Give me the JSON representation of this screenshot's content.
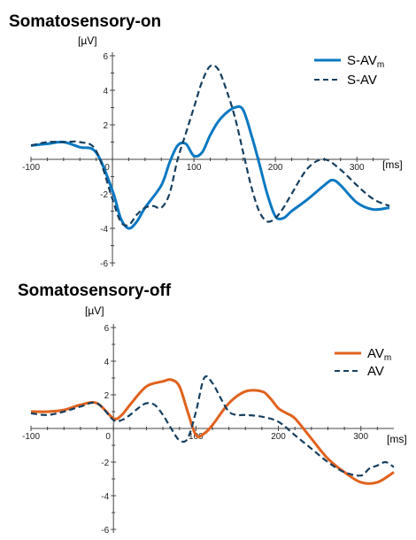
{
  "chart_data": [
    {
      "type": "line",
      "title": "Somatosensory-on",
      "ylabel": "[µV]",
      "xlabel": "[ms]",
      "xlim": [
        -100,
        340
      ],
      "ylim": [
        -6,
        6
      ],
      "xticks": [
        -100,
        0,
        100,
        200,
        300
      ],
      "yticks": [
        6,
        4,
        2,
        -2,
        -4,
        -6
      ],
      "colors": {
        "solid": "#0a78c2",
        "dashed": "#173f5f"
      },
      "legend_position": "top-right",
      "series": [
        {
          "name": "S-AV",
          "name_sub": "m",
          "style": "solid",
          "x": [
            -100,
            -80,
            -60,
            -40,
            -20,
            0,
            10,
            20,
            30,
            40,
            60,
            70,
            80,
            90,
            100,
            110,
            120,
            130,
            140,
            150,
            160,
            170,
            180,
            190,
            200,
            210,
            220,
            240,
            260,
            270,
            280,
            300,
            320,
            340
          ],
          "y": [
            0.8,
            0.9,
            1.0,
            0.7,
            0.4,
            -1.8,
            -3.4,
            -4.0,
            -3.6,
            -2.8,
            -1.5,
            -0.2,
            0.8,
            0.9,
            0.2,
            0.4,
            1.4,
            2.2,
            2.7,
            3.0,
            2.9,
            1.5,
            -0.2,
            -2.0,
            -3.3,
            -3.4,
            -3.0,
            -2.3,
            -1.5,
            -1.2,
            -1.5,
            -2.5,
            -2.9,
            -2.8
          ]
        },
        {
          "name": "S-AV",
          "style": "dashed",
          "x": [
            -100,
            -80,
            -60,
            -40,
            -20,
            0,
            10,
            20,
            30,
            40,
            50,
            60,
            70,
            80,
            90,
            100,
            110,
            120,
            130,
            140,
            150,
            160,
            170,
            180,
            190,
            200,
            210,
            220,
            240,
            260,
            280,
            300,
            320,
            340
          ],
          "y": [
            0.8,
            1.0,
            1.0,
            1.0,
            0.5,
            -2.3,
            -3.6,
            -3.8,
            -3.2,
            -2.8,
            -2.7,
            -2.8,
            -2.0,
            0.0,
            1.5,
            3.0,
            4.5,
            5.4,
            5.2,
            4.0,
            2.5,
            0.5,
            -1.5,
            -3.0,
            -3.6,
            -3.4,
            -2.8,
            -2.0,
            -0.5,
            0.0,
            -0.6,
            -1.5,
            -2.3,
            -2.7
          ]
        }
      ]
    },
    {
      "type": "line",
      "title": "Somatosensory-off",
      "ylabel": "[µV]",
      "xlabel": "[ms]",
      "xlim": [
        -100,
        340
      ],
      "ylim": [
        -6,
        6
      ],
      "xticks": [
        -100,
        0,
        100,
        200,
        300
      ],
      "yticks": [
        6,
        4,
        2,
        -2,
        -4,
        -6
      ],
      "colors": {
        "solid": "#e0621e",
        "dashed": "#173f5f"
      },
      "legend_position": "top-right",
      "series": [
        {
          "name": "AV",
          "name_sub": "m",
          "style": "solid",
          "x": [
            -100,
            -80,
            -60,
            -40,
            -20,
            0,
            10,
            20,
            40,
            60,
            70,
            80,
            90,
            100,
            110,
            120,
            140,
            160,
            180,
            190,
            200,
            210,
            220,
            240,
            260,
            280,
            300,
            320,
            340
          ],
          "y": [
            1.0,
            1.0,
            1.1,
            1.4,
            1.5,
            0.6,
            0.8,
            1.4,
            2.5,
            2.8,
            2.9,
            2.5,
            1.0,
            -0.4,
            -0.3,
            0.2,
            1.5,
            2.2,
            2.2,
            1.8,
            1.2,
            0.9,
            0.6,
            -0.6,
            -1.8,
            -2.6,
            -3.2,
            -3.2,
            -2.6
          ]
        },
        {
          "name": "AV",
          "style": "dashed",
          "x": [
            -100,
            -80,
            -60,
            -40,
            -20,
            0,
            10,
            20,
            30,
            40,
            50,
            60,
            70,
            80,
            90,
            100,
            110,
            120,
            130,
            140,
            150,
            160,
            180,
            200,
            220,
            240,
            260,
            280,
            300,
            310,
            320,
            330,
            340
          ],
          "y": [
            0.9,
            0.8,
            1.0,
            1.3,
            1.5,
            0.5,
            0.5,
            0.8,
            1.2,
            1.5,
            1.4,
            0.8,
            0.0,
            -0.7,
            -0.6,
            1.0,
            3.0,
            2.7,
            1.8,
            1.0,
            0.8,
            0.8,
            0.7,
            0.4,
            -0.4,
            -1.2,
            -2.0,
            -2.6,
            -2.8,
            -2.4,
            -2.2,
            -2.0,
            -2.3
          ]
        }
      ]
    }
  ]
}
